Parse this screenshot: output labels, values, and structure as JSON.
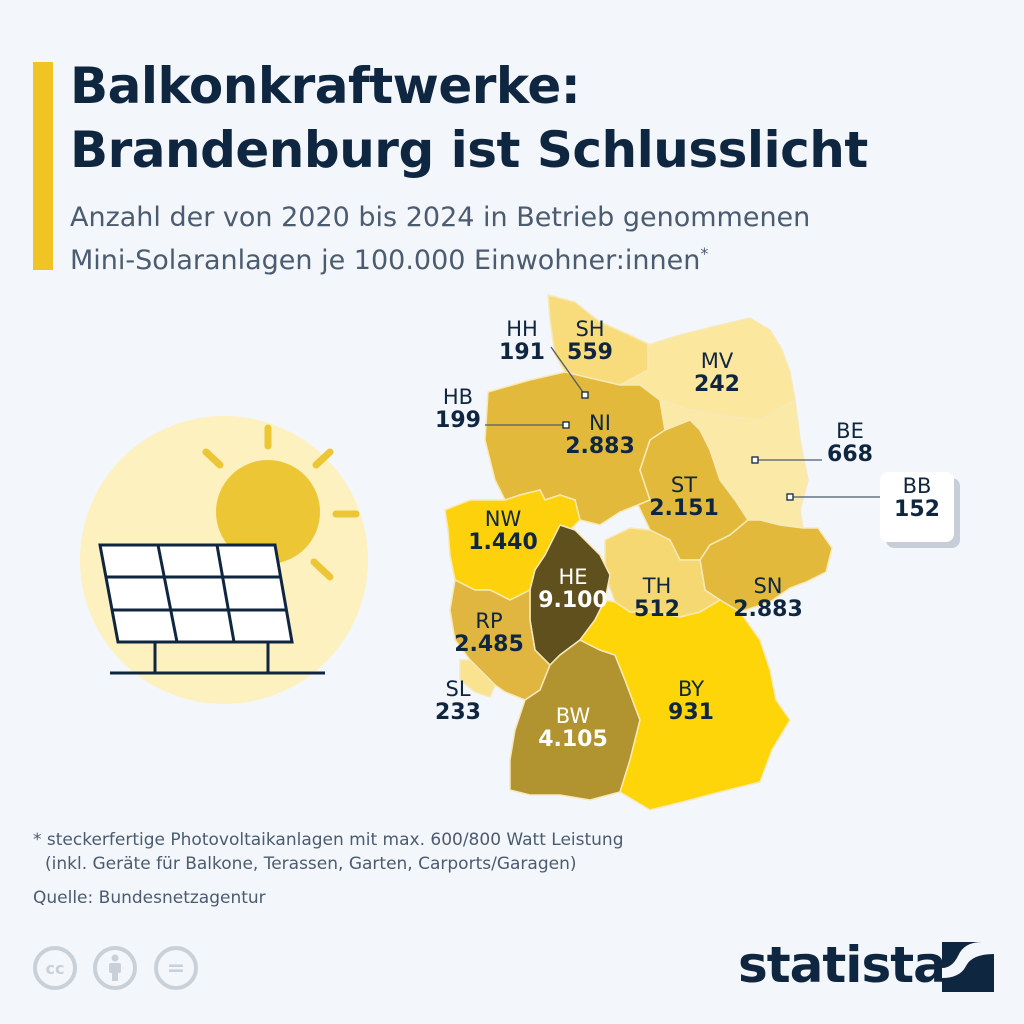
{
  "title_line1": "Balkonkraftwerke:",
  "title_line2": "Brandenburg ist Schlusslicht",
  "subtitle_line1": "Anzahl der von 2020 bis 2024 in Betrieb genommenen",
  "subtitle_line2": "Mini-Solaranlagen je 100.000 Einwohner:innen",
  "subtitle_marker": "*",
  "states": [
    {
      "code": "SH",
      "value": "559",
      "color": "#f8dc7c"
    },
    {
      "code": "HH",
      "value": "191",
      "color": "#f8dc7c"
    },
    {
      "code": "MV",
      "value": "242",
      "color": "#fbe79d"
    },
    {
      "code": "HB",
      "value": "199",
      "color": "#fbe79d"
    },
    {
      "code": "NI",
      "value": "2.883",
      "color": "#e3b93c"
    },
    {
      "code": "BE",
      "value": "668",
      "color": "#fbe9a8"
    },
    {
      "code": "BB",
      "value": "152",
      "color": "#fbe9a8"
    },
    {
      "code": "ST",
      "value": "2.151",
      "color": "#e3b93c"
    },
    {
      "code": "NW",
      "value": "1.440",
      "color": "#fdd20c"
    },
    {
      "code": "HE",
      "value": "9.100",
      "color": "#60501e"
    },
    {
      "code": "TH",
      "value": "512",
      "color": "#f6d872"
    },
    {
      "code": "SN",
      "value": "2.883",
      "color": "#e3b93c"
    },
    {
      "code": "RP",
      "value": "2.485",
      "color": "#e0b641"
    },
    {
      "code": "SL",
      "value": "233",
      "color": "#f9e290"
    },
    {
      "code": "BY",
      "value": "931",
      "color": "#fdd508"
    },
    {
      "code": "BW",
      "value": "4.105",
      "color": "#b1932f"
    }
  ],
  "footnote_line1": "* steckerfertige Photovoltaikanlagen mit max. 600/800 Watt Leistung",
  "footnote_line2": "(inkl. Geräte für Balkone, Terassen, Garten, Carports/Garagen)",
  "source": "Quelle: Bundesnetzagentur",
  "license_icons": [
    "cc-icon",
    "by-icon",
    "nd-icon"
  ],
  "cc_label": "cc",
  "nd_label": "=",
  "brand": "statista",
  "accent_color": "#f0c425"
}
